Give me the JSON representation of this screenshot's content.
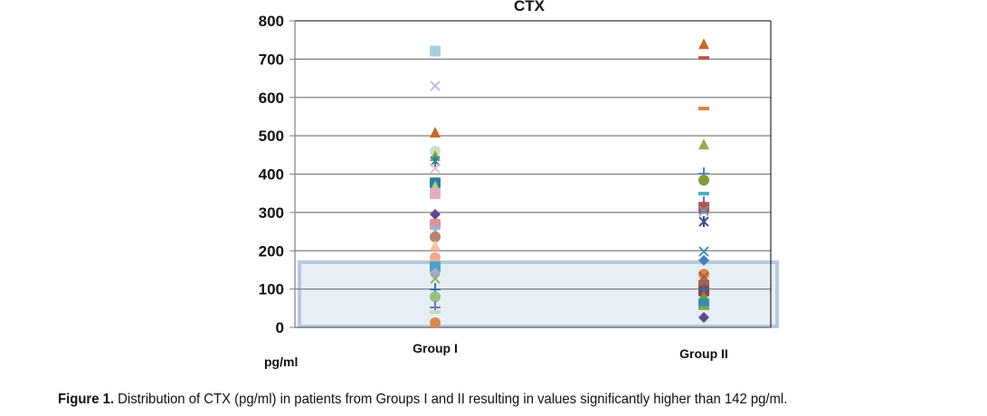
{
  "chart_data": {
    "type": "scatter",
    "title": "CTX",
    "xlabel": "",
    "ylabel": "pg/ml",
    "ylim": [
      0,
      800
    ],
    "yticks": [
      0,
      100,
      200,
      300,
      400,
      500,
      600,
      700,
      800
    ],
    "ytick_labels": [
      "0",
      "100",
      "200",
      "300",
      "400",
      "500",
      "600",
      "700",
      "800"
    ],
    "categories": [
      "Group I",
      "Group II"
    ],
    "grid": true,
    "legend": "none",
    "reference_band": {
      "from": 0,
      "to": 170,
      "color": "#dbe8f1",
      "border": "#b8c8dc"
    },
    "series": [
      {
        "name": "Group I",
        "points": [
          {
            "value": 721,
            "marker": "square",
            "color": "#a9d0df"
          },
          {
            "value": 630,
            "marker": "x",
            "color": "#b9b7e0"
          },
          {
            "value": 507,
            "marker": "triangle",
            "color": "#c46a2a"
          },
          {
            "value": 460,
            "marker": "circle",
            "color": "#cfe0c2"
          },
          {
            "value": 446,
            "marker": "triangle",
            "color": "#7aa84a"
          },
          {
            "value": 434,
            "marker": "star",
            "color": "#2f7ea0"
          },
          {
            "value": 415,
            "marker": "x",
            "color": "#e6b9b8"
          },
          {
            "value": 377,
            "marker": "square",
            "color": "#327d94"
          },
          {
            "value": 366,
            "marker": "triangle",
            "color": "#a9cd8c"
          },
          {
            "value": 349,
            "marker": "square",
            "color": "#e2aebb"
          },
          {
            "value": 295,
            "marker": "diamond",
            "color": "#5f4a8b"
          },
          {
            "value": 269,
            "marker": "square",
            "color": "#d9959b"
          },
          {
            "value": 252,
            "marker": "star",
            "color": "#8ebbdc"
          },
          {
            "value": 236,
            "marker": "circle",
            "color": "#b5846e"
          },
          {
            "value": 212,
            "marker": "triangle",
            "color": "#f6c1a6"
          },
          {
            "value": 182,
            "marker": "circle",
            "color": "#f2a98a"
          },
          {
            "value": 158,
            "marker": "square",
            "color": "#4aa3c6"
          },
          {
            "value": 142,
            "marker": "diamond",
            "color": "#a8a6d4"
          },
          {
            "value": 127,
            "marker": "x",
            "color": "#8bb061"
          },
          {
            "value": 99,
            "marker": "plus",
            "color": "#3d6fb0"
          },
          {
            "value": 80,
            "marker": "circle",
            "color": "#9bbf83"
          },
          {
            "value": 52,
            "marker": "plus",
            "color": "#6b73bf"
          },
          {
            "value": 40,
            "marker": "dash",
            "color": "#c4d9bf"
          },
          {
            "value": 12,
            "marker": "circle",
            "color": "#d9884a"
          }
        ]
      },
      {
        "name": "Group II",
        "points": [
          {
            "value": 738,
            "marker": "triangle",
            "color": "#c66d2a"
          },
          {
            "value": 703,
            "marker": "dash",
            "color": "#c0504d"
          },
          {
            "value": 571,
            "marker": "dash",
            "color": "#e0823d"
          },
          {
            "value": 476,
            "marker": "triangle",
            "color": "#8fb050"
          },
          {
            "value": 401,
            "marker": "plus",
            "color": "#4f81bd"
          },
          {
            "value": 384,
            "marker": "circle",
            "color": "#7e9d3a"
          },
          {
            "value": 349,
            "marker": "dash",
            "color": "#4bacc6"
          },
          {
            "value": 325,
            "marker": "plus",
            "color": "#7f5f9f"
          },
          {
            "value": 311,
            "marker": "square",
            "color": "#c0504d"
          },
          {
            "value": 304,
            "marker": "x",
            "color": "#4bacc6"
          },
          {
            "value": 276,
            "marker": "star",
            "color": "#3e4a8e"
          },
          {
            "value": 198,
            "marker": "x",
            "color": "#3785b8"
          },
          {
            "value": 175,
            "marker": "diamond",
            "color": "#4a7fc0"
          },
          {
            "value": 139,
            "marker": "circle",
            "color": "#d9874a"
          },
          {
            "value": 132,
            "marker": "x",
            "color": "#b0504a"
          },
          {
            "value": 111,
            "marker": "square",
            "color": "#a9663e"
          },
          {
            "value": 95,
            "marker": "square",
            "color": "#8e3f4d"
          },
          {
            "value": 100,
            "marker": "plus",
            "color": "#3f6ab0"
          },
          {
            "value": 80,
            "marker": "triangle",
            "color": "#70953f"
          },
          {
            "value": 62,
            "marker": "square",
            "color": "#3c8ea8"
          },
          {
            "value": 50,
            "marker": "dash",
            "color": "#7ea15a"
          },
          {
            "value": 26,
            "marker": "diamond",
            "color": "#5e4a8a"
          }
        ]
      }
    ]
  },
  "caption": {
    "label": "Figure 1.",
    "text": " Distribution of CTX (pg/ml) in patients from Groups I and II resulting in values significantly higher than 142 pg/ml."
  }
}
